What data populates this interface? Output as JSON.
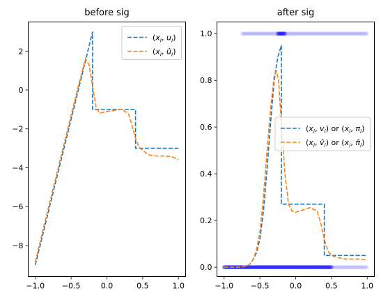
{
  "chart_data": [
    {
      "type": "line",
      "title": "before sig",
      "xlabel": "",
      "ylabel": "",
      "xlim": [
        -1.1,
        1.1
      ],
      "ylim": [
        -9.6,
        3.5
      ],
      "xticks": [
        -1.0,
        -0.5,
        0.0,
        0.5,
        1.0
      ],
      "xtick_labels": [
        "−1.0",
        "−0.5",
        "0.0",
        "0.5",
        "1.0"
      ],
      "yticks": [
        2,
        0,
        -2,
        -4,
        -6,
        -8
      ],
      "ytick_labels": [
        "2",
        "0",
        "−2",
        "−4",
        "−6",
        "−8"
      ],
      "legend_position": "top-right",
      "grid": false,
      "series": [
        {
          "name": "(x_i, u_i)",
          "legend_label": [
            "(",
            "x",
            "i",
            ", ",
            "u",
            "i",
            ")"
          ],
          "color": "#1f77b4",
          "dash": "dashed",
          "x": [
            -1.0,
            -0.2,
            -0.2,
            0.4,
            0.4,
            1.0
          ],
          "y": [
            -9.0,
            3.0,
            -1.0,
            -1.0,
            -3.0,
            -3.0
          ]
        },
        {
          "name": "(x_i, û_i)",
          "legend_label": [
            "(",
            "x",
            "i",
            ", ",
            "û",
            "i",
            ")"
          ],
          "color": "#ff7f0e",
          "dash": "dashed",
          "x": [
            -1.0,
            -0.9,
            -0.8,
            -0.7,
            -0.6,
            -0.5,
            -0.4,
            -0.3,
            -0.25,
            -0.2,
            -0.15,
            -0.1,
            -0.05,
            0.0,
            0.1,
            0.2,
            0.3,
            0.35,
            0.4,
            0.45,
            0.5,
            0.55,
            0.6,
            0.7,
            0.8,
            0.9,
            0.95,
            1.0
          ],
          "y": [
            -8.85,
            -7.3,
            -5.8,
            -4.3,
            -2.8,
            -1.3,
            0.2,
            1.6,
            1.3,
            0.2,
            -0.9,
            -1.2,
            -1.15,
            -1.1,
            -1.05,
            -1.0,
            -1.2,
            -1.8,
            -2.5,
            -2.95,
            -3.1,
            -3.25,
            -3.35,
            -3.4,
            -3.4,
            -3.42,
            -3.5,
            -3.6
          ]
        }
      ]
    },
    {
      "type": "line",
      "title": "after sig",
      "xlabel": "",
      "ylabel": "",
      "xlim": [
        -1.1,
        1.1
      ],
      "ylim": [
        -0.04,
        1.05
      ],
      "xticks": [
        -1.0,
        -0.5,
        0.0,
        0.5,
        1.0
      ],
      "xtick_labels": [
        "−1.0",
        "−0.5",
        "0.0",
        "0.5",
        "1.0"
      ],
      "yticks": [
        0.0,
        0.2,
        0.4,
        0.6,
        0.8,
        1.0
      ],
      "ytick_labels": [
        "0.0",
        "0.2",
        "0.4",
        "0.6",
        "0.8",
        "1.0"
      ],
      "legend_position": "center-right",
      "grid": false,
      "series": [
        {
          "name": "(x_i, v_i) or (x_i, π_i)",
          "legend_label": [
            "(",
            "x",
            "i",
            ", ",
            "v",
            "i",
            ") or (",
            "x",
            "i",
            ", ",
            "π",
            "i",
            ")"
          ],
          "color": "#1f77b4",
          "dash": "dashed",
          "x": [
            -1.0,
            -0.75,
            -0.7,
            -0.65,
            -0.6,
            -0.55,
            -0.5,
            -0.45,
            -0.4,
            -0.35,
            -0.3,
            -0.25,
            -0.2,
            -0.2,
            0.4,
            0.4,
            1.0
          ],
          "y": [
            0.0,
            0.0,
            0.005,
            0.01,
            0.03,
            0.06,
            0.12,
            0.24,
            0.42,
            0.62,
            0.8,
            0.9,
            0.95,
            0.27,
            0.27,
            0.05,
            0.05
          ]
        },
        {
          "name": "(x_i, v̂_i) or (x_i, π̂_i)",
          "legend_label": [
            "(",
            "x",
            "i",
            ", ",
            "v̂",
            "i",
            ") or (",
            "x",
            "i",
            ", ",
            "π̂",
            "i",
            ")"
          ],
          "color": "#ff7f0e",
          "dash": "dashed",
          "x": [
            -1.0,
            -0.8,
            -0.7,
            -0.65,
            -0.6,
            -0.55,
            -0.5,
            -0.45,
            -0.4,
            -0.35,
            -0.3,
            -0.27,
            -0.24,
            -0.2,
            -0.15,
            -0.1,
            -0.05,
            0.0,
            0.1,
            0.2,
            0.3,
            0.35,
            0.4,
            0.45,
            0.5,
            0.6,
            0.7,
            0.8,
            0.9,
            1.0
          ],
          "y": [
            0.0,
            0.0,
            0.005,
            0.01,
            0.03,
            0.07,
            0.15,
            0.3,
            0.5,
            0.68,
            0.82,
            0.84,
            0.8,
            0.62,
            0.4,
            0.27,
            0.24,
            0.235,
            0.245,
            0.255,
            0.24,
            0.19,
            0.12,
            0.07,
            0.05,
            0.04,
            0.035,
            0.035,
            0.035,
            0.03
          ]
        }
      ],
      "scatter_bands": [
        {
          "y": 1.0,
          "x_start": -0.75,
          "x_end": 1.0,
          "dense_start": -0.25,
          "dense_end": -0.15,
          "color": "#0000ff"
        },
        {
          "y": 0.0,
          "x_start": -1.0,
          "x_end": 1.0,
          "dense_start": -1.0,
          "dense_end": 0.5,
          "color": "#0000ff"
        }
      ]
    }
  ]
}
